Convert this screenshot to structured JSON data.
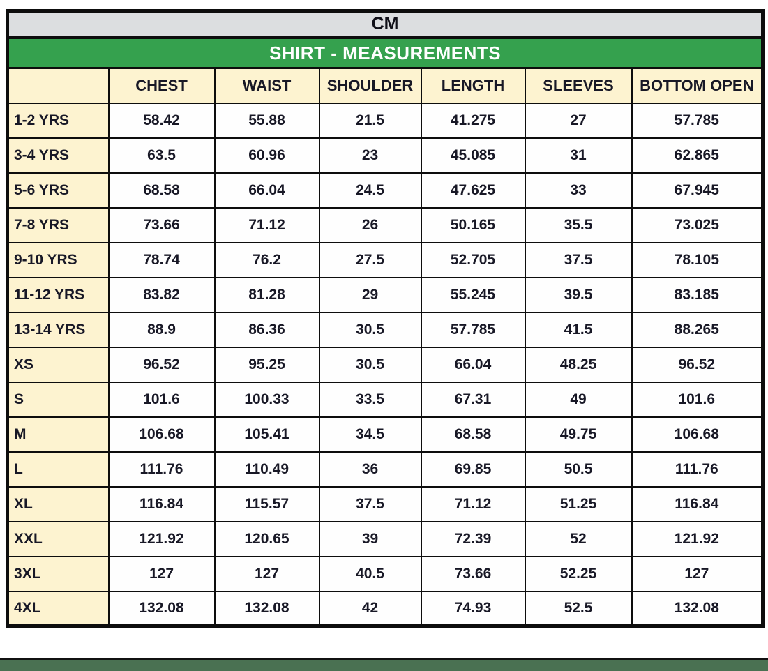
{
  "colors": {
    "unit_bar_bg": "#dcdee0",
    "title_bg": "#35a14e",
    "title_text": "#ffffff",
    "header_bg": "#fdf3d0",
    "value_cell_bg": "#fefefe",
    "text": "#181826",
    "border": "#0d0d0d",
    "bottom_strip": "#4a7152"
  },
  "chart_data": {
    "type": "table",
    "unit": "CM",
    "title": "SHIRT - MEASUREMENTS",
    "columns": [
      "CHEST",
      "WAIST",
      "SHOULDER",
      "LENGTH",
      "SLEEVES",
      "BOTTOM OPEN"
    ],
    "rows": [
      {
        "label": "1-2 YRS",
        "values": [
          "58.42",
          "55.88",
          "21.5",
          "41.275",
          "27",
          "57.785"
        ]
      },
      {
        "label": "3-4 YRS",
        "values": [
          "63.5",
          "60.96",
          "23",
          "45.085",
          "31",
          "62.865"
        ]
      },
      {
        "label": "5-6 YRS",
        "values": [
          "68.58",
          "66.04",
          "24.5",
          "47.625",
          "33",
          "67.945"
        ]
      },
      {
        "label": "7-8 YRS",
        "values": [
          "73.66",
          "71.12",
          "26",
          "50.165",
          "35.5",
          "73.025"
        ]
      },
      {
        "label": "9-10 YRS",
        "values": [
          "78.74",
          "76.2",
          "27.5",
          "52.705",
          "37.5",
          "78.105"
        ]
      },
      {
        "label": "11-12 YRS",
        "values": [
          "83.82",
          "81.28",
          "29",
          "55.245",
          "39.5",
          "83.185"
        ]
      },
      {
        "label": "13-14 YRS",
        "values": [
          "88.9",
          "86.36",
          "30.5",
          "57.785",
          "41.5",
          "88.265"
        ]
      },
      {
        "label": "XS",
        "values": [
          "96.52",
          "95.25",
          "30.5",
          "66.04",
          "48.25",
          "96.52"
        ]
      },
      {
        "label": "S",
        "values": [
          "101.6",
          "100.33",
          "33.5",
          "67.31",
          "49",
          "101.6"
        ]
      },
      {
        "label": "M",
        "values": [
          "106.68",
          "105.41",
          "34.5",
          "68.58",
          "49.75",
          "106.68"
        ]
      },
      {
        "label": "L",
        "values": [
          "111.76",
          "110.49",
          "36",
          "69.85",
          "50.5",
          "111.76"
        ]
      },
      {
        "label": "XL",
        "values": [
          "116.84",
          "115.57",
          "37.5",
          "71.12",
          "51.25",
          "116.84"
        ]
      },
      {
        "label": "XXL",
        "values": [
          "121.92",
          "120.65",
          "39",
          "72.39",
          "52",
          "121.92"
        ]
      },
      {
        "label": "3XL",
        "values": [
          "127",
          "127",
          "40.5",
          "73.66",
          "52.25",
          "127"
        ]
      },
      {
        "label": "4XL",
        "values": [
          "132.08",
          "132.08",
          "42",
          "74.93",
          "52.5",
          "132.08"
        ]
      }
    ]
  }
}
